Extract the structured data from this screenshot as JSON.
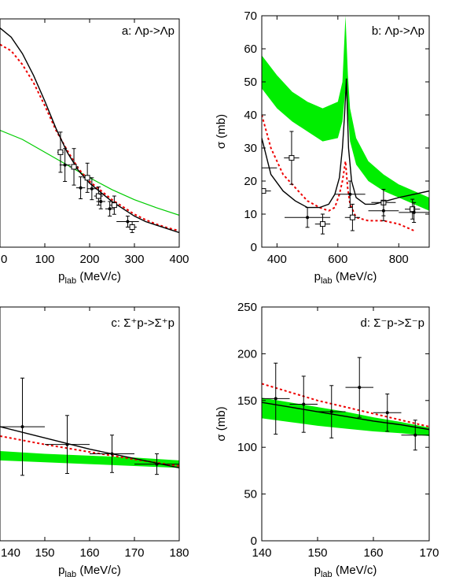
{
  "chart_data": [
    {
      "type": "line",
      "title": "a: Λp->Λp",
      "xlabel": "p",
      "xlabel_sub": "lab",
      "xlabel_unit": " (MeV/c)",
      "ylabel": "",
      "xlim": [
        0,
        400
      ],
      "ylim": [
        0,
        250
      ],
      "xticks": [
        "0",
        "100",
        "200",
        "300",
        "400"
      ],
      "yticks": [],
      "band": {
        "x": [
          0,
          50,
          100,
          150,
          200,
          250,
          300,
          350,
          400
        ],
        "lo": [
          0,
          0,
          0,
          0,
          0,
          0,
          0,
          0,
          0
        ],
        "hi": [
          0,
          0,
          0,
          0,
          0,
          0,
          0,
          0,
          0
        ]
      },
      "green_line": {
        "x": [
          0,
          50,
          100,
          150,
          200,
          250,
          300,
          350,
          400
        ],
        "y": [
          128,
          118,
          104,
          90,
          76,
          63,
          52,
          43,
          35
        ]
      },
      "black_line": {
        "x": [
          0,
          25,
          50,
          75,
          100,
          125,
          150,
          175,
          200,
          225,
          250,
          275,
          300,
          325,
          350,
          375,
          400
        ],
        "y": [
          240,
          230,
          212,
          188,
          160,
          130,
          104,
          84,
          70,
          60,
          50,
          42,
          34,
          28,
          24,
          20,
          16
        ]
      },
      "red_line": {
        "x": [
          0,
          25,
          50,
          75,
          100,
          125,
          150,
          175,
          200,
          225,
          250,
          275,
          300,
          325,
          350,
          375,
          400
        ],
        "y": [
          222,
          215,
          200,
          180,
          155,
          128,
          106,
          86,
          72,
          62,
          52,
          44,
          36,
          30,
          25,
          21,
          18
        ]
      },
      "points": [
        {
          "x": 135,
          "y": 104,
          "xerr": 7,
          "yerr": 22,
          "marker": "square"
        },
        {
          "x": 145,
          "y": 90,
          "xerr": 12,
          "yerr": 18,
          "marker": "dot"
        },
        {
          "x": 165,
          "y": 88,
          "xerr": 10,
          "yerr": 20,
          "marker": "square"
        },
        {
          "x": 180,
          "y": 65,
          "xerr": 10,
          "yerr": 12,
          "marker": "dot"
        },
        {
          "x": 195,
          "y": 76,
          "xerr": 10,
          "yerr": 16,
          "marker": "square"
        },
        {
          "x": 205,
          "y": 64,
          "xerr": 10,
          "yerr": 12,
          "marker": "dot"
        },
        {
          "x": 220,
          "y": 56,
          "xerr": 10,
          "yerr": 10,
          "marker": "square"
        },
        {
          "x": 225,
          "y": 50,
          "xerr": 10,
          "yerr": 8,
          "marker": "dot"
        },
        {
          "x": 245,
          "y": 42,
          "xerr": 10,
          "yerr": 8,
          "marker": "dot"
        },
        {
          "x": 255,
          "y": 46,
          "xerr": 10,
          "yerr": 10,
          "marker": "square"
        },
        {
          "x": 285,
          "y": 28,
          "xerr": 25,
          "yerr": 6,
          "marker": "dot"
        },
        {
          "x": 295,
          "y": 22,
          "xerr": 10,
          "yerr": 6,
          "marker": "square"
        }
      ]
    },
    {
      "type": "line",
      "title": "b: Λp->Λp",
      "xlabel": "p",
      "xlabel_sub": "lab",
      "xlabel_unit": " (MeV/c)",
      "ylabel": "σ (mb)",
      "xlim": [
        350,
        900
      ],
      "ylim": [
        0,
        70
      ],
      "xticks": [
        "400",
        "600",
        "800"
      ],
      "xtick_values": [
        400,
        600,
        800
      ],
      "yticks": [
        "0",
        "10",
        "20",
        "30",
        "40",
        "50",
        "60",
        "70"
      ],
      "band": {
        "x": [
          350,
          400,
          450,
          500,
          550,
          600,
          615,
          625,
          633,
          640,
          660,
          700,
          750,
          800,
          850,
          900
        ],
        "lo": [
          48,
          42,
          38,
          35,
          32,
          33,
          38,
          48,
          40,
          32,
          25,
          20,
          17,
          15,
          13,
          11
        ],
        "hi": [
          58,
          52,
          47,
          44,
          42,
          44,
          50,
          70,
          52,
          42,
          33,
          26,
          22,
          19,
          17,
          15
        ]
      },
      "black_line": {
        "x": [
          350,
          380,
          420,
          460,
          500,
          540,
          570,
          590,
          605,
          615,
          622,
          628,
          635,
          645,
          660,
          690,
          720,
          760,
          800,
          850,
          900
        ],
        "y": [
          33,
          22,
          17,
          14,
          12,
          12,
          13,
          16,
          21,
          30,
          40,
          51,
          30,
          20,
          15,
          13,
          13,
          14,
          15,
          16,
          17
        ]
      },
      "red_line": {
        "x": [
          350,
          380,
          420,
          460,
          500,
          540,
          570,
          590,
          605,
          615,
          625,
          632,
          640,
          660,
          700,
          750,
          800,
          850
        ],
        "y": [
          40,
          30,
          22,
          18,
          14,
          12,
          11,
          12,
          16,
          20,
          26,
          18,
          13,
          9,
          8,
          8,
          7,
          5
        ]
      },
      "points": [
        {
          "x": 355,
          "y": 17,
          "xerr": 25,
          "yerr": 0,
          "marker": "square"
        },
        {
          "x": 365,
          "y": 24,
          "xerr": 35,
          "yerr": 0,
          "marker": "none"
        },
        {
          "x": 448,
          "y": 27,
          "xerr": 25,
          "yerr": 8,
          "marker": "square"
        },
        {
          "x": 500,
          "y": 9,
          "xerr": 75,
          "yerr": 3,
          "marker": "dot"
        },
        {
          "x": 550,
          "y": 7,
          "xerr": 25,
          "yerr": 3,
          "marker": "square"
        },
        {
          "x": 640,
          "y": 16,
          "xerr": 50,
          "yerr": 4,
          "marker": "dot"
        },
        {
          "x": 648,
          "y": 9,
          "xerr": 25,
          "yerr": 4,
          "marker": "square"
        },
        {
          "x": 750,
          "y": 13.5,
          "xerr": 40,
          "yerr": 4,
          "marker": "square"
        },
        {
          "x": 750,
          "y": 11,
          "xerr": 50,
          "yerr": 3,
          "marker": "dot"
        },
        {
          "x": 845,
          "y": 11.5,
          "xerr": 25,
          "yerr": 3,
          "marker": "square"
        },
        {
          "x": 850,
          "y": 10.5,
          "xerr": 50,
          "yerr": 3,
          "marker": "dot"
        }
      ]
    },
    {
      "type": "line",
      "title": "c: Σ⁺p->Σ⁺p",
      "xlabel": "p",
      "xlabel_sub": "lab",
      "xlabel_unit": " (MeV/c)",
      "ylabel": "",
      "xlim": [
        140,
        180
      ],
      "ylim": [
        0,
        250
      ],
      "xticks": [
        "140",
        "150",
        "160",
        "170",
        "180"
      ],
      "yticks": [],
      "band": {
        "x": [
          140,
          150,
          160,
          170,
          180
        ],
        "lo": [
          86,
          84,
          82,
          80,
          78
        ],
        "hi": [
          96,
          93,
          91,
          89,
          86
        ]
      },
      "black_line": {
        "x": [
          140,
          150,
          160,
          170,
          180
        ],
        "y": [
          122,
          110,
          98,
          88,
          78
        ]
      },
      "red_line": {
        "x": [
          140,
          150,
          160,
          170,
          180
        ],
        "y": [
          112,
          103,
          95,
          87,
          80
        ]
      },
      "points": [
        {
          "x": 145,
          "y": 122,
          "xerr": 5,
          "yerr": 52,
          "marker": "dot"
        },
        {
          "x": 155,
          "y": 103,
          "xerr": 5,
          "yerr": 31,
          "marker": "dot"
        },
        {
          "x": 165,
          "y": 93,
          "xerr": 5,
          "yerr": 20,
          "marker": "dot"
        },
        {
          "x": 175,
          "y": 82,
          "xerr": 5,
          "yerr": 11,
          "marker": "dot"
        }
      ]
    },
    {
      "type": "line",
      "title": "d: Σ⁻p->Σ⁻p",
      "xlabel": "p",
      "xlabel_sub": "lab",
      "xlabel_unit": " (MeV/c)",
      "ylabel": "σ (mb)",
      "xlim": [
        140,
        170
      ],
      "ylim": [
        0,
        250
      ],
      "xticks": [
        "140",
        "150",
        "160",
        "170"
      ],
      "yticks": [
        "0",
        "50",
        "100",
        "150",
        "200",
        "250"
      ],
      "band": {
        "x": [
          140,
          145,
          150,
          155,
          160,
          165,
          170
        ],
        "lo": [
          131,
          127,
          123,
          120,
          117,
          115,
          112
        ],
        "hi": [
          153,
          148,
          143,
          138,
          132,
          127,
          121
        ]
      },
      "black_line": {
        "x": [
          140,
          145,
          150,
          155,
          160,
          165,
          170
        ],
        "y": [
          148,
          143,
          138,
          133,
          128,
          124,
          119
        ]
      },
      "red_line": {
        "x": [
          140,
          145,
          150,
          155,
          160,
          165,
          170
        ],
        "y": [
          168,
          159,
          150,
          143,
          136,
          129,
          122
        ]
      },
      "points": [
        {
          "x": 142.5,
          "y": 152,
          "xerr": 2.5,
          "yerr": 38,
          "marker": "dot"
        },
        {
          "x": 147.5,
          "y": 146,
          "xerr": 2.5,
          "yerr": 30,
          "marker": "dot"
        },
        {
          "x": 152.5,
          "y": 138,
          "xerr": 2.5,
          "yerr": 28,
          "marker": "dot"
        },
        {
          "x": 157.5,
          "y": 164,
          "xerr": 2.5,
          "yerr": 32,
          "marker": "dot"
        },
        {
          "x": 162.5,
          "y": 137,
          "xerr": 2.5,
          "yerr": 20,
          "marker": "dot"
        },
        {
          "x": 167.5,
          "y": 113,
          "xerr": 2.5,
          "yerr": 16,
          "marker": "dot"
        }
      ]
    }
  ],
  "colors": {
    "band": "#00ee00",
    "green_line": "#00cc00",
    "black_line": "#000000",
    "red_line": "#ee0000",
    "points": "#000000"
  }
}
